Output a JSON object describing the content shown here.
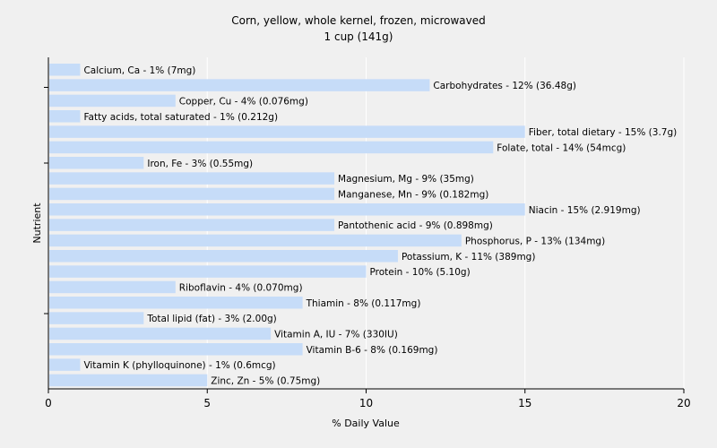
{
  "chart_data": {
    "type": "bar",
    "orientation": "horizontal",
    "title": "Corn, yellow, whole kernel, frozen, microwaved",
    "subtitle": "1 cup (141g)",
    "xlabel": "% Daily Value",
    "ylabel": "Nutrient",
    "xlim": [
      0,
      20
    ],
    "xticks": [
      0,
      5,
      10,
      15,
      20
    ],
    "grid": true,
    "bar_color": "#c6dcf8",
    "categories": [
      "Calcium, Ca",
      "Carbohydrates",
      "Copper, Cu",
      "Fatty acids, total saturated",
      "Fiber, total dietary",
      "Folate, total",
      "Iron, Fe",
      "Magnesium, Mg",
      "Manganese, Mn",
      "Niacin",
      "Pantothenic acid",
      "Phosphorus, P",
      "Potassium, K",
      "Protein",
      "Riboflavin",
      "Thiamin",
      "Total lipid (fat)",
      "Vitamin A, IU",
      "Vitamin B-6",
      "Vitamin K (phylloquinone)",
      "Zinc, Zn"
    ],
    "values": [
      1,
      12,
      4,
      1,
      15,
      14,
      3,
      9,
      9,
      15,
      9,
      13,
      11,
      10,
      4,
      8,
      3,
      7,
      8,
      1,
      5
    ],
    "labels": [
      "Calcium, Ca - 1% (7mg)",
      "Carbohydrates - 12% (36.48g)",
      "Copper, Cu - 4% (0.076mg)",
      "Fatty acids, total saturated - 1% (0.212g)",
      "Fiber, total dietary - 15% (3.7g)",
      "Folate, total - 14% (54mcg)",
      "Iron, Fe - 3% (0.55mg)",
      "Magnesium, Mg - 9% (35mg)",
      "Manganese, Mn - 9% (0.182mg)",
      "Niacin - 15% (2.919mg)",
      "Pantothenic acid - 9% (0.898mg)",
      "Phosphorus, P - 13% (134mg)",
      "Potassium, K - 11% (389mg)",
      "Protein - 10% (5.10g)",
      "Riboflavin - 4% (0.070mg)",
      "Thiamin - 8% (0.117mg)",
      "Total lipid (fat) - 3% (2.00g)",
      "Vitamin A, IU - 7% (330IU)",
      "Vitamin B-6 - 8% (0.169mg)",
      "Vitamin K (phylloquinone) - 1% (0.6mcg)",
      "Zinc, Zn - 5% (0.75mg)"
    ]
  }
}
